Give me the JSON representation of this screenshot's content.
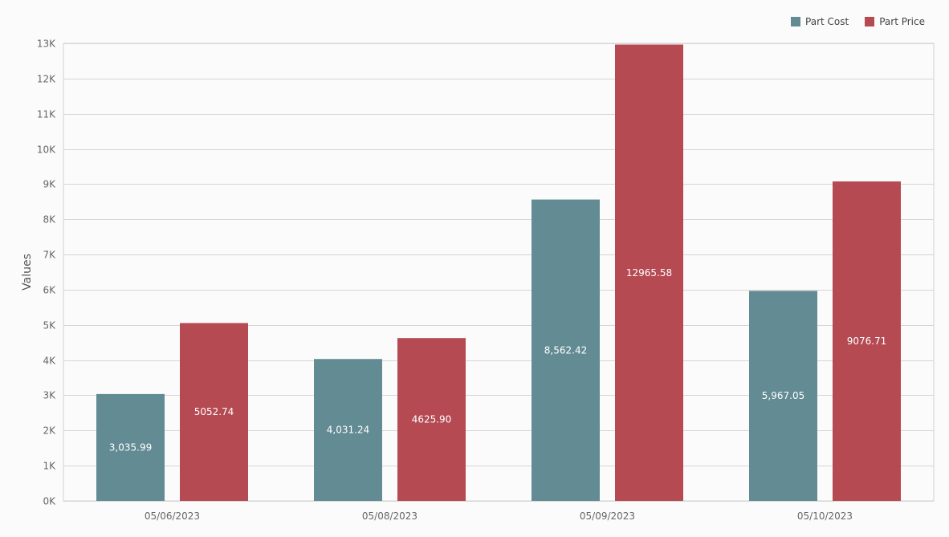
{
  "chart_data": {
    "type": "bar",
    "title": "",
    "xlabel": "",
    "ylabel": "Values",
    "categories": [
      "05/06/2023",
      "05/08/2023",
      "05/09/2023",
      "05/10/2023"
    ],
    "series": [
      {
        "name": "Part Cost",
        "color": "#638b93",
        "values": [
          3035.99,
          4031.24,
          8562.42,
          5967.05
        ],
        "labels": [
          "3,035.99",
          "4,031.24",
          "8,562.42",
          "5,967.05"
        ]
      },
      {
        "name": "Part Price",
        "color": "#b54a53",
        "values": [
          5052.74,
          4625.9,
          12965.58,
          9076.71
        ],
        "labels": [
          "5052.74",
          "4625.90",
          "12965.58",
          "9076.71"
        ]
      }
    ],
    "ylim": [
      0,
      13000
    ],
    "yticks": [
      0,
      1000,
      2000,
      3000,
      4000,
      5000,
      6000,
      7000,
      8000,
      9000,
      10000,
      11000,
      12000,
      13000
    ],
    "ytick_labels": [
      "0K",
      "1K",
      "2K",
      "3K",
      "4K",
      "5K",
      "6K",
      "7K",
      "8K",
      "9K",
      "10K",
      "11K",
      "12K",
      "13K"
    ],
    "grid": true,
    "legend_position": "top-right"
  }
}
